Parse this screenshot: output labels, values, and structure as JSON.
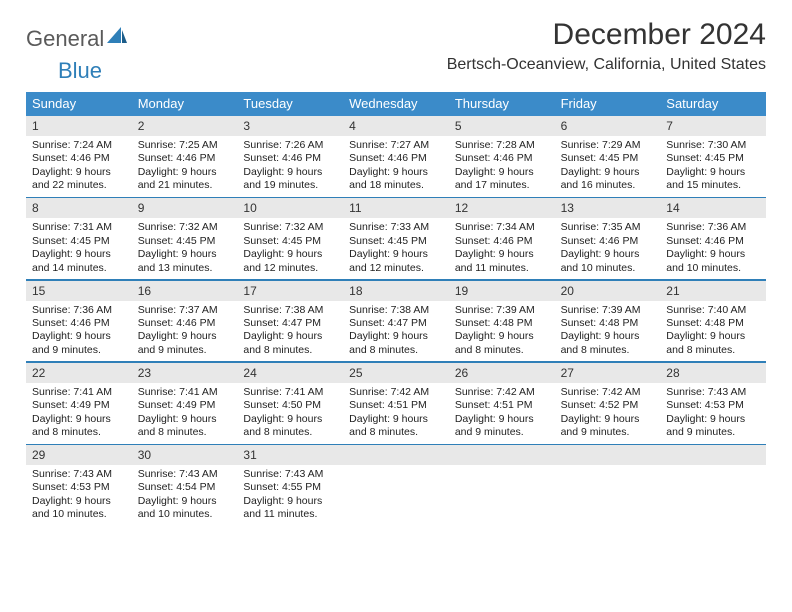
{
  "logo": {
    "part1": "General",
    "part2": "Blue"
  },
  "title": "December 2024",
  "location": "Bertsch-Oceanview, California, United States",
  "colors": {
    "header_bg": "#3b8bc9",
    "header_text": "#ffffff",
    "separator": "#2f7fb8",
    "daynum_bg": "#e8e8e8",
    "text": "#222222",
    "logo_gray": "#5a5a5a",
    "logo_blue": "#2f7fb8"
  },
  "typography": {
    "title_fontsize": 30,
    "location_fontsize": 16,
    "header_fontsize": 13,
    "daynum_fontsize": 12,
    "body_fontsize": 10.5
  },
  "dayHeaders": [
    "Sunday",
    "Monday",
    "Tuesday",
    "Wednesday",
    "Thursday",
    "Friday",
    "Saturday"
  ],
  "weeks": [
    [
      {
        "num": "1",
        "sunrise": "Sunrise: 7:24 AM",
        "sunset": "Sunset: 4:46 PM",
        "day1": "Daylight: 9 hours",
        "day2": "and 22 minutes."
      },
      {
        "num": "2",
        "sunrise": "Sunrise: 7:25 AM",
        "sunset": "Sunset: 4:46 PM",
        "day1": "Daylight: 9 hours",
        "day2": "and 21 minutes."
      },
      {
        "num": "3",
        "sunrise": "Sunrise: 7:26 AM",
        "sunset": "Sunset: 4:46 PM",
        "day1": "Daylight: 9 hours",
        "day2": "and 19 minutes."
      },
      {
        "num": "4",
        "sunrise": "Sunrise: 7:27 AM",
        "sunset": "Sunset: 4:46 PM",
        "day1": "Daylight: 9 hours",
        "day2": "and 18 minutes."
      },
      {
        "num": "5",
        "sunrise": "Sunrise: 7:28 AM",
        "sunset": "Sunset: 4:46 PM",
        "day1": "Daylight: 9 hours",
        "day2": "and 17 minutes."
      },
      {
        "num": "6",
        "sunrise": "Sunrise: 7:29 AM",
        "sunset": "Sunset: 4:45 PM",
        "day1": "Daylight: 9 hours",
        "day2": "and 16 minutes."
      },
      {
        "num": "7",
        "sunrise": "Sunrise: 7:30 AM",
        "sunset": "Sunset: 4:45 PM",
        "day1": "Daylight: 9 hours",
        "day2": "and 15 minutes."
      }
    ],
    [
      {
        "num": "8",
        "sunrise": "Sunrise: 7:31 AM",
        "sunset": "Sunset: 4:45 PM",
        "day1": "Daylight: 9 hours",
        "day2": "and 14 minutes."
      },
      {
        "num": "9",
        "sunrise": "Sunrise: 7:32 AM",
        "sunset": "Sunset: 4:45 PM",
        "day1": "Daylight: 9 hours",
        "day2": "and 13 minutes."
      },
      {
        "num": "10",
        "sunrise": "Sunrise: 7:32 AM",
        "sunset": "Sunset: 4:45 PM",
        "day1": "Daylight: 9 hours",
        "day2": "and 12 minutes."
      },
      {
        "num": "11",
        "sunrise": "Sunrise: 7:33 AM",
        "sunset": "Sunset: 4:45 PM",
        "day1": "Daylight: 9 hours",
        "day2": "and 12 minutes."
      },
      {
        "num": "12",
        "sunrise": "Sunrise: 7:34 AM",
        "sunset": "Sunset: 4:46 PM",
        "day1": "Daylight: 9 hours",
        "day2": "and 11 minutes."
      },
      {
        "num": "13",
        "sunrise": "Sunrise: 7:35 AM",
        "sunset": "Sunset: 4:46 PM",
        "day1": "Daylight: 9 hours",
        "day2": "and 10 minutes."
      },
      {
        "num": "14",
        "sunrise": "Sunrise: 7:36 AM",
        "sunset": "Sunset: 4:46 PM",
        "day1": "Daylight: 9 hours",
        "day2": "and 10 minutes."
      }
    ],
    [
      {
        "num": "15",
        "sunrise": "Sunrise: 7:36 AM",
        "sunset": "Sunset: 4:46 PM",
        "day1": "Daylight: 9 hours",
        "day2": "and 9 minutes."
      },
      {
        "num": "16",
        "sunrise": "Sunrise: 7:37 AM",
        "sunset": "Sunset: 4:46 PM",
        "day1": "Daylight: 9 hours",
        "day2": "and 9 minutes."
      },
      {
        "num": "17",
        "sunrise": "Sunrise: 7:38 AM",
        "sunset": "Sunset: 4:47 PM",
        "day1": "Daylight: 9 hours",
        "day2": "and 8 minutes."
      },
      {
        "num": "18",
        "sunrise": "Sunrise: 7:38 AM",
        "sunset": "Sunset: 4:47 PM",
        "day1": "Daylight: 9 hours",
        "day2": "and 8 minutes."
      },
      {
        "num": "19",
        "sunrise": "Sunrise: 7:39 AM",
        "sunset": "Sunset: 4:48 PM",
        "day1": "Daylight: 9 hours",
        "day2": "and 8 minutes."
      },
      {
        "num": "20",
        "sunrise": "Sunrise: 7:39 AM",
        "sunset": "Sunset: 4:48 PM",
        "day1": "Daylight: 9 hours",
        "day2": "and 8 minutes."
      },
      {
        "num": "21",
        "sunrise": "Sunrise: 7:40 AM",
        "sunset": "Sunset: 4:48 PM",
        "day1": "Daylight: 9 hours",
        "day2": "and 8 minutes."
      }
    ],
    [
      {
        "num": "22",
        "sunrise": "Sunrise: 7:41 AM",
        "sunset": "Sunset: 4:49 PM",
        "day1": "Daylight: 9 hours",
        "day2": "and 8 minutes."
      },
      {
        "num": "23",
        "sunrise": "Sunrise: 7:41 AM",
        "sunset": "Sunset: 4:49 PM",
        "day1": "Daylight: 9 hours",
        "day2": "and 8 minutes."
      },
      {
        "num": "24",
        "sunrise": "Sunrise: 7:41 AM",
        "sunset": "Sunset: 4:50 PM",
        "day1": "Daylight: 9 hours",
        "day2": "and 8 minutes."
      },
      {
        "num": "25",
        "sunrise": "Sunrise: 7:42 AM",
        "sunset": "Sunset: 4:51 PM",
        "day1": "Daylight: 9 hours",
        "day2": "and 8 minutes."
      },
      {
        "num": "26",
        "sunrise": "Sunrise: 7:42 AM",
        "sunset": "Sunset: 4:51 PM",
        "day1": "Daylight: 9 hours",
        "day2": "and 9 minutes."
      },
      {
        "num": "27",
        "sunrise": "Sunrise: 7:42 AM",
        "sunset": "Sunset: 4:52 PM",
        "day1": "Daylight: 9 hours",
        "day2": "and 9 minutes."
      },
      {
        "num": "28",
        "sunrise": "Sunrise: 7:43 AM",
        "sunset": "Sunset: 4:53 PM",
        "day1": "Daylight: 9 hours",
        "day2": "and 9 minutes."
      }
    ],
    [
      {
        "num": "29",
        "sunrise": "Sunrise: 7:43 AM",
        "sunset": "Sunset: 4:53 PM",
        "day1": "Daylight: 9 hours",
        "day2": "and 10 minutes."
      },
      {
        "num": "30",
        "sunrise": "Sunrise: 7:43 AM",
        "sunset": "Sunset: 4:54 PM",
        "day1": "Daylight: 9 hours",
        "day2": "and 10 minutes."
      },
      {
        "num": "31",
        "sunrise": "Sunrise: 7:43 AM",
        "sunset": "Sunset: 4:55 PM",
        "day1": "Daylight: 9 hours",
        "day2": "and 11 minutes."
      },
      {
        "num": "",
        "empty": true
      },
      {
        "num": "",
        "empty": true
      },
      {
        "num": "",
        "empty": true
      },
      {
        "num": "",
        "empty": true
      }
    ]
  ]
}
